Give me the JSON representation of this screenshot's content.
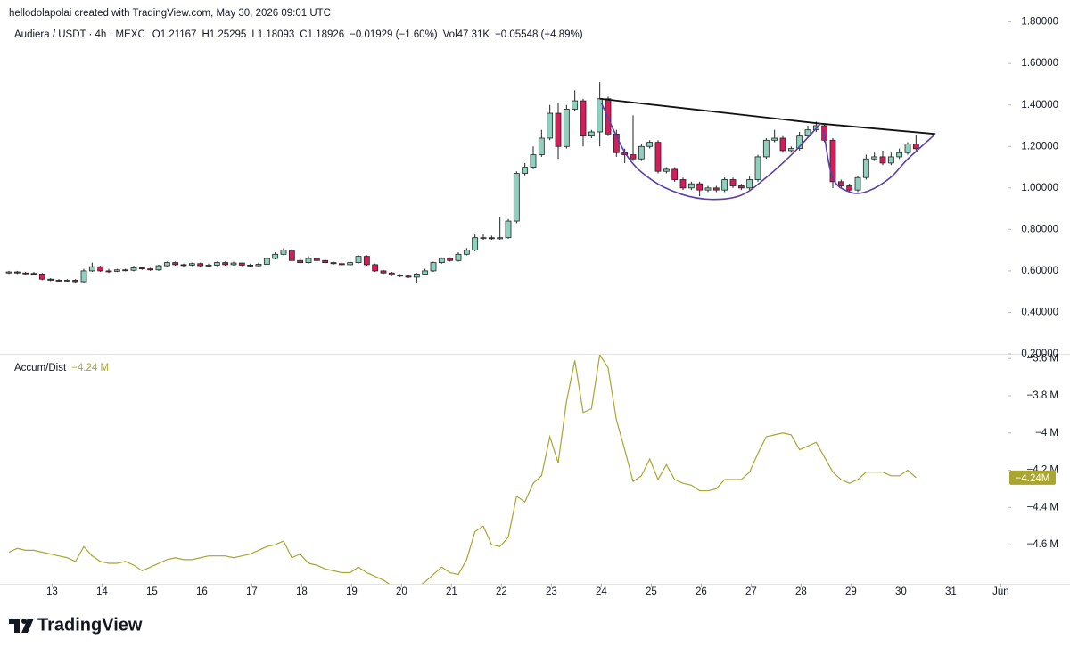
{
  "header": {
    "credit": "hellodolapolai created with TradingView.com, May 30, 2026 09:01 UTC"
  },
  "chart_data": [
    {
      "type": "candlestick",
      "title": "Audiera / USDT · 4h · MEXC",
      "legend": [
        "O1.21167",
        "H1.25295",
        "L1.18093",
        "C1.18926",
        "−0.01929 (−1.60%)",
        "Vol47.31K",
        "+0.05548 (+4.89%)"
      ],
      "up_color": "#8ed1bf",
      "down_color": "#d81b5b",
      "border_color": "#222222",
      "xlim": [
        12.1,
        32.1
      ],
      "ylim": [
        0.2,
        1.82
      ],
      "yticks": [
        {
          "value": 0.2,
          "label": "0.20000"
        },
        {
          "value": 0.4,
          "label": "0.40000"
        },
        {
          "value": 0.6,
          "label": "0.60000"
        },
        {
          "value": 0.8,
          "label": "0.80000"
        },
        {
          "value": 1.0,
          "label": "1.00000"
        },
        {
          "value": 1.2,
          "label": "1.20000"
        },
        {
          "value": 1.4,
          "label": "1.40000"
        },
        {
          "value": 1.6,
          "label": "1.60000"
        },
        {
          "value": 1.8,
          "label": "1.80000"
        }
      ],
      "open": [
        0.59,
        0.595,
        0.59,
        0.588,
        0.585,
        0.56,
        0.555,
        0.553,
        0.555,
        0.548,
        0.6,
        0.62,
        0.6,
        0.598,
        0.605,
        0.603,
        0.615,
        0.61,
        0.605,
        0.625,
        0.64,
        0.63,
        0.628,
        0.635,
        0.625,
        0.628,
        0.64,
        0.63,
        0.638,
        0.628,
        0.625,
        0.632,
        0.66,
        0.68,
        0.7,
        0.65,
        0.64,
        0.66,
        0.65,
        0.64,
        0.635,
        0.63,
        0.64,
        0.67,
        0.63,
        0.6,
        0.59,
        0.58,
        0.575,
        0.57,
        0.585,
        0.6,
        0.64,
        0.66,
        0.65,
        0.68,
        0.7,
        0.76,
        0.76,
        0.755,
        0.76,
        0.84,
        1.07,
        1.1,
        1.16,
        1.24,
        1.36,
        1.2,
        1.38,
        1.42,
        1.25,
        1.27,
        1.43,
        1.26,
        1.17,
        1.16,
        1.14,
        1.2,
        1.22,
        1.08,
        1.09,
        1.04,
        1.0,
        1.02,
        0.99,
        1.0,
        0.99,
        1.04,
        1.01,
        1.0,
        1.04,
        1.15,
        1.23,
        1.24,
        1.18,
        1.19,
        1.25,
        1.28,
        1.3,
        1.23,
        1.03,
        1.01,
        0.99,
        1.05,
        1.14,
        1.15,
        1.12,
        1.15,
        1.17,
        1.21167
      ],
      "high": [
        0.6,
        0.6,
        0.595,
        0.595,
        0.59,
        0.565,
        0.56,
        0.56,
        0.56,
        0.61,
        0.64,
        0.625,
        0.61,
        0.61,
        0.61,
        0.625,
        0.62,
        0.615,
        0.63,
        0.645,
        0.645,
        0.635,
        0.64,
        0.64,
        0.635,
        0.645,
        0.645,
        0.645,
        0.64,
        0.635,
        0.64,
        0.665,
        0.69,
        0.71,
        0.705,
        0.66,
        0.67,
        0.665,
        0.655,
        0.645,
        0.64,
        0.65,
        0.675,
        0.675,
        0.635,
        0.605,
        0.595,
        0.585,
        0.58,
        0.59,
        0.61,
        0.645,
        0.665,
        0.665,
        0.69,
        0.71,
        0.78,
        0.78,
        0.77,
        0.86,
        0.85,
        1.08,
        1.12,
        1.2,
        1.28,
        1.4,
        1.41,
        1.4,
        1.47,
        1.43,
        1.28,
        1.51,
        1.44,
        1.28,
        1.19,
        1.35,
        1.21,
        1.23,
        1.23,
        1.1,
        1.1,
        1.05,
        1.03,
        1.03,
        1.01,
        1.01,
        1.05,
        1.05,
        1.02,
        1.06,
        1.16,
        1.24,
        1.28,
        1.25,
        1.2,
        1.27,
        1.3,
        1.32,
        1.31,
        1.24,
        1.04,
        1.02,
        1.06,
        1.16,
        1.17,
        1.18,
        1.17,
        1.19,
        1.22,
        1.25295
      ],
      "low": [
        0.585,
        0.585,
        0.583,
        0.58,
        0.555,
        0.55,
        0.548,
        0.548,
        0.543,
        0.54,
        0.595,
        0.595,
        0.59,
        0.595,
        0.598,
        0.598,
        0.605,
        0.6,
        0.6,
        0.62,
        0.625,
        0.62,
        0.623,
        0.62,
        0.62,
        0.623,
        0.625,
        0.625,
        0.623,
        0.62,
        0.62,
        0.628,
        0.655,
        0.675,
        0.645,
        0.635,
        0.635,
        0.645,
        0.635,
        0.63,
        0.625,
        0.625,
        0.635,
        0.625,
        0.595,
        0.585,
        0.575,
        0.57,
        0.565,
        0.54,
        0.58,
        0.595,
        0.635,
        0.645,
        0.645,
        0.675,
        0.695,
        0.75,
        0.75,
        0.75,
        0.755,
        0.83,
        1.06,
        1.09,
        1.15,
        1.23,
        1.14,
        1.19,
        1.37,
        1.2,
        1.24,
        1.2,
        1.25,
        1.15,
        1.12,
        1.13,
        1.13,
        1.19,
        1.07,
        1.07,
        1.03,
        0.99,
        0.99,
        0.96,
        0.98,
        0.98,
        0.98,
        1.0,
        0.99,
        0.99,
        1.03,
        1.14,
        1.22,
        1.17,
        1.17,
        1.18,
        1.24,
        1.27,
        1.22,
        1.0,
        1.0,
        0.98,
        0.98,
        1.04,
        1.13,
        1.11,
        1.11,
        1.14,
        1.16,
        1.18093
      ],
      "close": [
        0.595,
        0.59,
        0.588,
        0.585,
        0.56,
        0.555,
        0.553,
        0.555,
        0.548,
        0.6,
        0.62,
        0.6,
        0.598,
        0.605,
        0.603,
        0.615,
        0.61,
        0.605,
        0.625,
        0.64,
        0.63,
        0.628,
        0.635,
        0.625,
        0.628,
        0.64,
        0.63,
        0.638,
        0.628,
        0.625,
        0.632,
        0.66,
        0.68,
        0.7,
        0.65,
        0.64,
        0.66,
        0.65,
        0.64,
        0.635,
        0.63,
        0.64,
        0.67,
        0.63,
        0.6,
        0.59,
        0.58,
        0.575,
        0.57,
        0.585,
        0.6,
        0.64,
        0.66,
        0.65,
        0.68,
        0.7,
        0.76,
        0.76,
        0.755,
        0.76,
        0.84,
        1.07,
        1.1,
        1.16,
        1.24,
        1.36,
        1.2,
        1.38,
        1.42,
        1.25,
        1.27,
        1.43,
        1.26,
        1.17,
        1.16,
        1.14,
        1.2,
        1.22,
        1.08,
        1.09,
        1.04,
        1.0,
        1.02,
        0.99,
        1.0,
        0.99,
        1.04,
        1.01,
        1.0,
        1.04,
        1.15,
        1.23,
        1.24,
        1.18,
        1.19,
        1.25,
        1.28,
        1.3,
        1.23,
        1.03,
        1.01,
        0.99,
        1.05,
        1.14,
        1.15,
        1.12,
        1.15,
        1.17,
        1.21167,
        1.18926
      ],
      "annotations": [
        {
          "type": "trendline",
          "color": "#111111",
          "x": [
            23.97,
            28.39,
            30.69
          ],
          "y": [
            1.43,
            1.31,
            1.26
          ]
        },
        {
          "type": "curve",
          "color": "#5a3eaa",
          "x": [
            24.0,
            24.5,
            25.0,
            25.6,
            26.2,
            26.8,
            27.3,
            27.85,
            28.39
          ],
          "y": [
            1.41,
            1.16,
            1.04,
            0.97,
            0.945,
            0.965,
            1.05,
            1.17,
            1.31
          ]
        },
        {
          "type": "curve",
          "color": "#5a3eaa",
          "x": [
            28.45,
            28.63,
            28.98,
            29.34,
            29.79,
            30.14,
            30.69
          ],
          "y": [
            1.28,
            1.05,
            0.98,
            0.985,
            1.05,
            1.14,
            1.26
          ]
        }
      ]
    },
    {
      "type": "line",
      "xlim": [
        12.1,
        32.1
      ],
      "xticks": [
        13,
        14,
        15,
        16,
        17,
        18,
        19,
        20,
        21,
        22,
        23,
        24,
        25,
        26,
        27,
        28,
        29,
        30,
        31,
        {
          "value": 32,
          "label": "Jun"
        }
      ],
      "ylim": [
        -4.81,
        -3.575
      ],
      "yticks": [
        {
          "value": -3.6,
          "label": "−3.6 M"
        },
        {
          "value": -3.8,
          "label": "−3.8 M"
        },
        {
          "value": -4,
          "label": "−4 M"
        },
        {
          "value": -4.2,
          "label": "−4.2 M"
        },
        {
          "value": -4.4,
          "label": "−4.4 M"
        },
        {
          "value": -4.6,
          "label": "−4.6 M"
        }
      ],
      "series": [
        {
          "name": "Accum/Dist",
          "color": "#aaa431",
          "last_label": "−4.24 M",
          "last_badge": "−4.24M",
          "values": [
            -4.64,
            -4.62,
            -4.63,
            -4.63,
            -4.64,
            -4.65,
            -4.66,
            -4.67,
            -4.69,
            -4.61,
            -4.66,
            -4.69,
            -4.7,
            -4.7,
            -4.69,
            -4.71,
            -4.74,
            -4.72,
            -4.7,
            -4.68,
            -4.67,
            -4.68,
            -4.68,
            -4.67,
            -4.66,
            -4.66,
            -4.66,
            -4.67,
            -4.66,
            -4.65,
            -4.63,
            -4.61,
            -4.6,
            -4.58,
            -4.67,
            -4.65,
            -4.7,
            -4.71,
            -4.73,
            -4.74,
            -4.75,
            -4.75,
            -4.72,
            -4.75,
            -4.77,
            -4.79,
            -4.82,
            -4.83,
            -4.85,
            -4.83,
            -4.8,
            -4.76,
            -4.72,
            -4.75,
            -4.76,
            -4.68,
            -4.53,
            -4.5,
            -4.6,
            -4.61,
            -4.56,
            -4.34,
            -4.37,
            -4.27,
            -4.23,
            -4.02,
            -4.16,
            -3.83,
            -3.61,
            -3.89,
            -3.87,
            -3.58,
            -3.65,
            -3.93,
            -4.09,
            -4.26,
            -4.23,
            -4.14,
            -4.25,
            -4.17,
            -4.25,
            -4.27,
            -4.28,
            -4.31,
            -4.31,
            -4.3,
            -4.25,
            -4.25,
            -4.25,
            -4.21,
            -4.11,
            -4.02,
            -4.01,
            -4.0,
            -4.01,
            -4.09,
            -4.07,
            -4.05,
            -4.13,
            -4.21,
            -4.25,
            -4.27,
            -4.25,
            -4.21,
            -4.21,
            -4.21,
            -4.23,
            -4.23,
            -4.2,
            -4.24
          ]
        }
      ]
    }
  ],
  "footer": {
    "logo": "TradingView"
  }
}
